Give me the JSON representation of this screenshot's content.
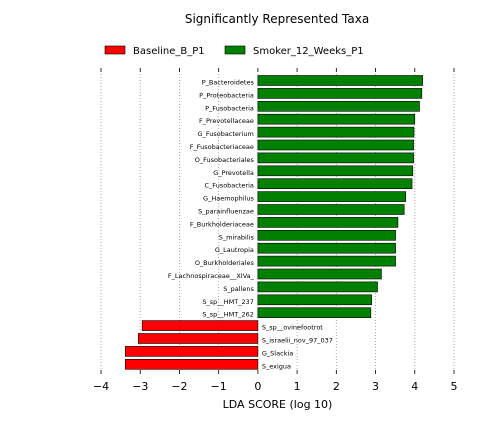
{
  "chart_data": {
    "type": "bar",
    "orientation": "horizontal",
    "title": "Significantly Represented Taxa",
    "xlabel": "LDA SCORE (log 10)",
    "ylabel": "",
    "xlim": [
      -4,
      5
    ],
    "xticks": [
      "−4",
      "−3",
      "−2",
      "−1",
      "0",
      "1",
      "2",
      "3",
      "4",
      "5"
    ],
    "xtick_values": [
      -4,
      -3,
      -2,
      -1,
      0,
      1,
      2,
      3,
      4,
      5
    ],
    "grid": "vertical dotted",
    "legend_position": "top",
    "legend": [
      {
        "name": "Baseline_B_P1",
        "color": "#ff0000"
      },
      {
        "name": "Smoker_12_Weeks_P1",
        "color": "#008000"
      }
    ],
    "categories": [
      "P_Bacteroidetes",
      "P_Proteobacteria",
      "P_Fusobacteria",
      "F_Prevotellaceae",
      "G_Fusobacterium",
      "F_Fusobacteriaceae",
      "O_Fusobacteriales",
      "G_Prevotella",
      "C_Fusobacteria",
      "G_Haemophilus",
      "S_parainfluenzae",
      "F_Burkholderiaceae",
      "S_mirabilis",
      "G_Lautropia",
      "O_Burkholderiales",
      "F_Lachnospiraceae__XIVa_",
      "S_pallens",
      "S_sp__HMT_237",
      "S_sp__HMT_262",
      "S_sp__ovinefootrot",
      "S_israelii_nov_97_037",
      "G_Slackia",
      "S_exigua"
    ],
    "values": [
      4.2,
      4.18,
      4.12,
      4.0,
      3.98,
      3.97,
      3.97,
      3.95,
      3.93,
      3.77,
      3.73,
      3.57,
      3.51,
      3.51,
      3.51,
      3.15,
      3.05,
      2.9,
      2.88,
      -2.95,
      -3.05,
      -3.38,
      -3.38
    ],
    "groups": [
      "Smoker_12_Weeks_P1",
      "Smoker_12_Weeks_P1",
      "Smoker_12_Weeks_P1",
      "Smoker_12_Weeks_P1",
      "Smoker_12_Weeks_P1",
      "Smoker_12_Weeks_P1",
      "Smoker_12_Weeks_P1",
      "Smoker_12_Weeks_P1",
      "Smoker_12_Weeks_P1",
      "Smoker_12_Weeks_P1",
      "Smoker_12_Weeks_P1",
      "Smoker_12_Weeks_P1",
      "Smoker_12_Weeks_P1",
      "Smoker_12_Weeks_P1",
      "Smoker_12_Weeks_P1",
      "Smoker_12_Weeks_P1",
      "Smoker_12_Weeks_P1",
      "Smoker_12_Weeks_P1",
      "Smoker_12_Weeks_P1",
      "Baseline_B_P1",
      "Baseline_B_P1",
      "Baseline_B_P1",
      "Baseline_B_P1"
    ]
  }
}
